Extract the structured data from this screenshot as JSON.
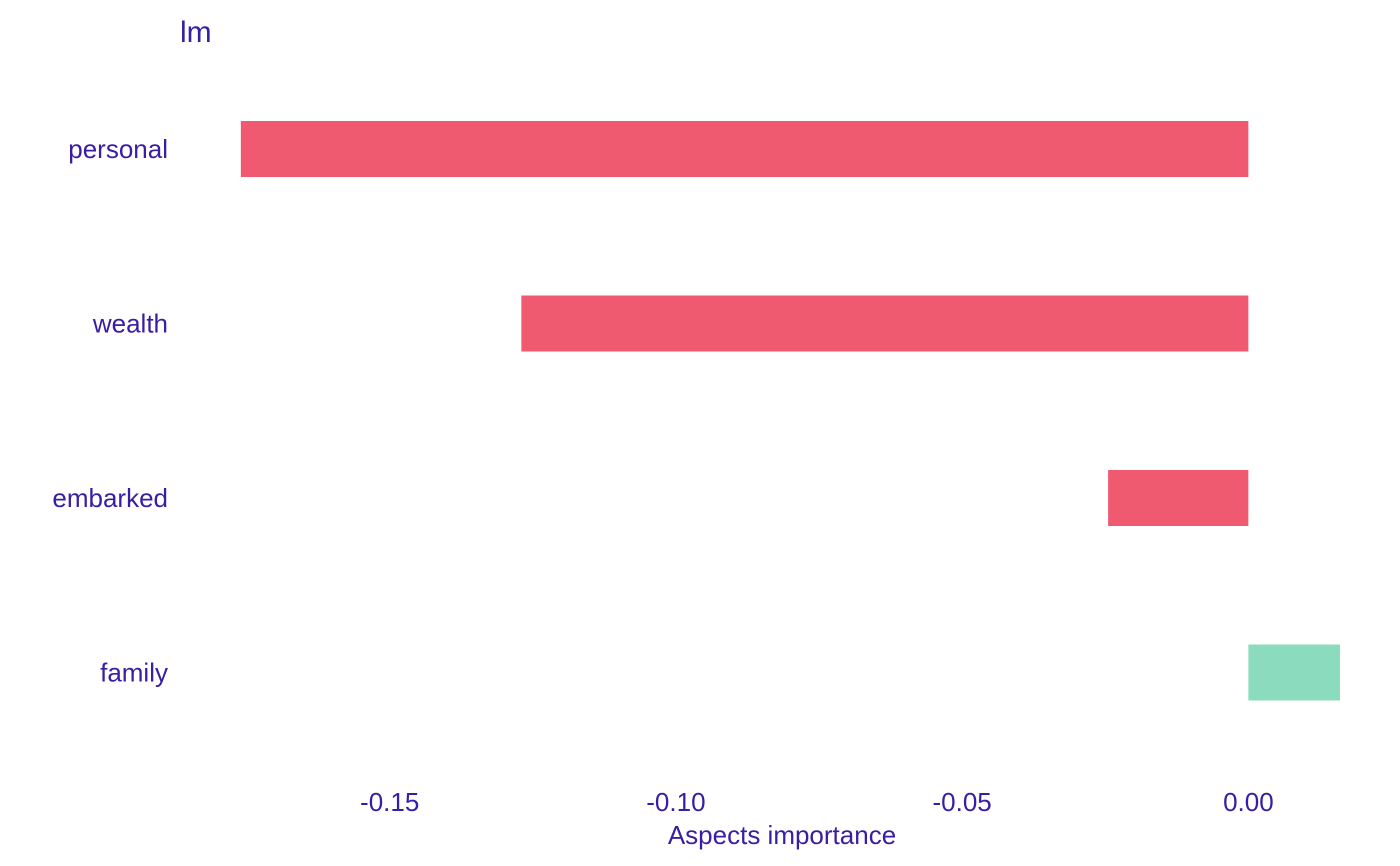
{
  "chart_data": {
    "type": "bar",
    "orientation": "horizontal",
    "title": "lm",
    "xlabel": "Aspects importance",
    "ylabel": "",
    "categories": [
      "personal",
      "wealth",
      "embarked",
      "family"
    ],
    "values": [
      -0.176,
      -0.127,
      -0.0245,
      0.016
    ],
    "xlim": [
      -0.1875,
      0.0195
    ],
    "xticks": [
      -0.15,
      -0.1,
      -0.05,
      0.0
    ],
    "xtick_labels": [
      "-0.15",
      "-0.10",
      "-0.05",
      "0.00"
    ],
    "grid": false,
    "legend": "none"
  },
  "colors": {
    "negative": "#f05a71",
    "positive": "#8bdcbe",
    "text": "#371ea3"
  }
}
